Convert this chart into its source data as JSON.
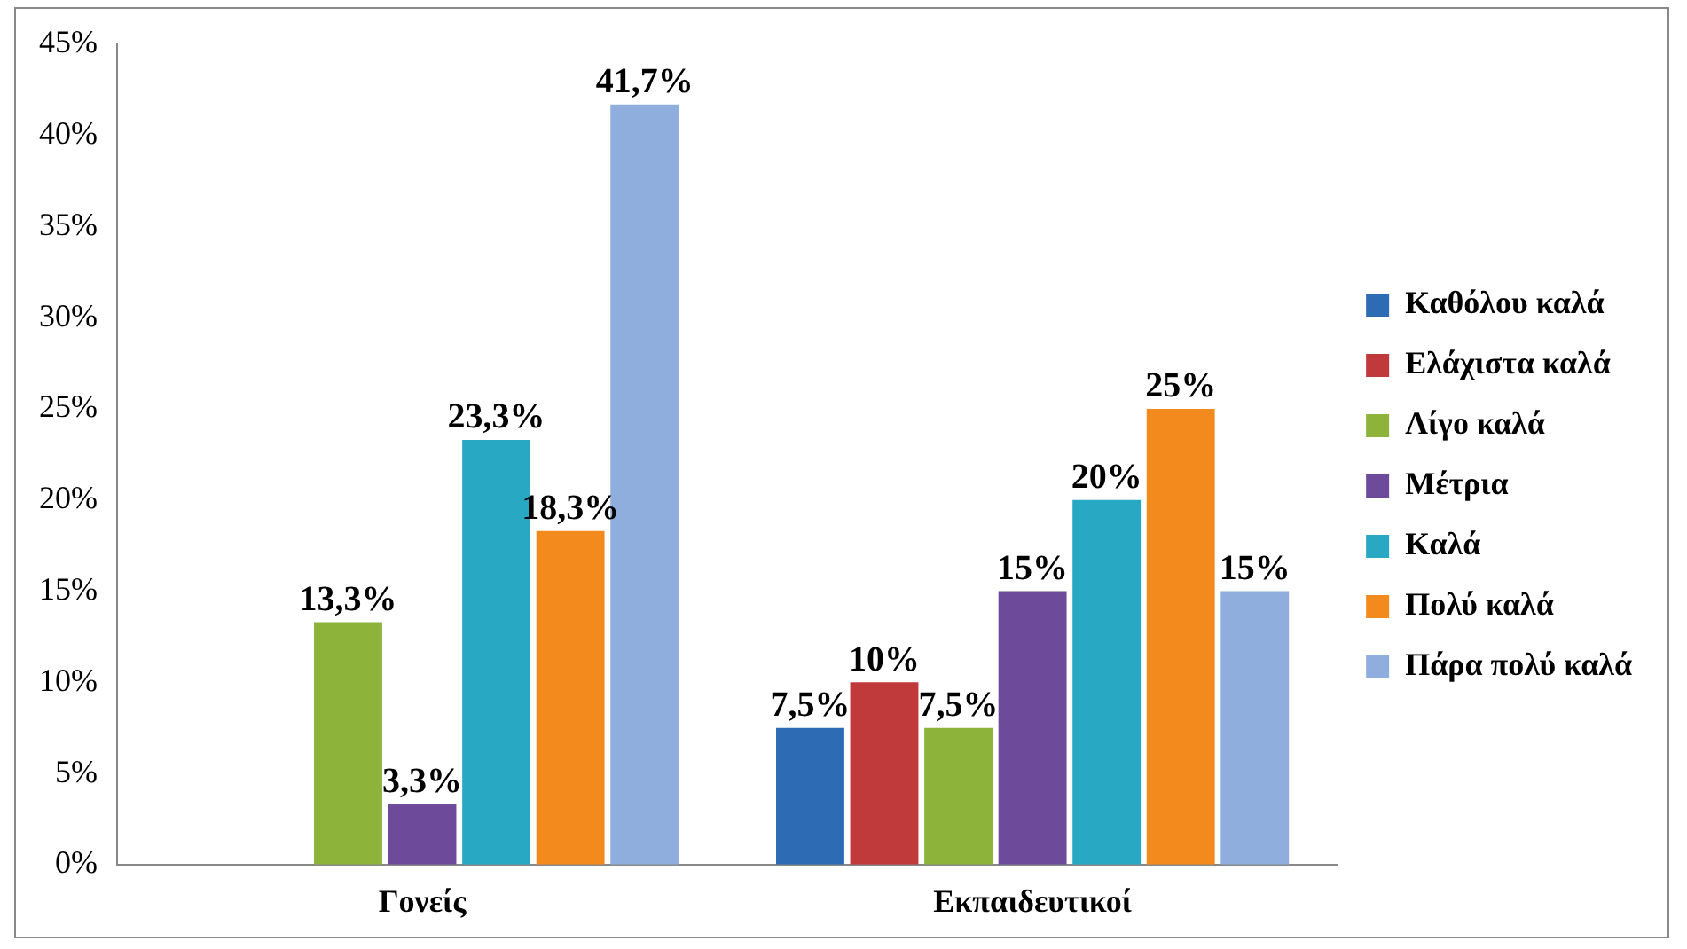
{
  "chart_data": {
    "type": "bar",
    "categories": [
      "Γονείς",
      "Εκπαιδευτικοί"
    ],
    "series": [
      {
        "name": "Καθόλου καλά",
        "color": "#2e6bb5",
        "values": [
          0,
          7.5
        ],
        "value_labels": [
          null,
          "7,5%"
        ]
      },
      {
        "name": "Ελάχιστα καλά",
        "color": "#c0393b",
        "values": [
          0,
          10
        ],
        "value_labels": [
          null,
          "10%"
        ]
      },
      {
        "name": "Λίγο καλά",
        "color": "#8db33a",
        "values": [
          13.3,
          7.5
        ],
        "value_labels": [
          "13,3%",
          "7,5%"
        ]
      },
      {
        "name": "Μέτρια",
        "color": "#6e4a9a",
        "values": [
          3.3,
          15
        ],
        "value_labels": [
          "3,3%",
          "15%"
        ]
      },
      {
        "name": "Καλά",
        "color": "#29a8c4",
        "values": [
          23.3,
          20
        ],
        "value_labels": [
          "23,3%",
          "20%"
        ]
      },
      {
        "name": "Πολύ καλά",
        "color": "#f28a1e",
        "values": [
          18.3,
          25
        ],
        "value_labels": [
          "18,3%",
          "25%"
        ]
      },
      {
        "name": "Πάρα πολύ καλά",
        "color": "#8faedd",
        "values": [
          41.7,
          15
        ],
        "value_labels": [
          "41,7%",
          "15%"
        ]
      }
    ],
    "ylim": [
      0,
      45
    ],
    "yticks": [
      {
        "value": 0,
        "label": "0%"
      },
      {
        "value": 5,
        "label": "5%"
      },
      {
        "value": 10,
        "label": "10%"
      },
      {
        "value": 15,
        "label": "15%"
      },
      {
        "value": 20,
        "label": "20%"
      },
      {
        "value": 25,
        "label": "25%"
      },
      {
        "value": 30,
        "label": "30%"
      },
      {
        "value": 35,
        "label": "35%"
      },
      {
        "value": 40,
        "label": "40%"
      },
      {
        "value": 45,
        "label": "45%"
      }
    ],
    "grid": false,
    "legend": "right"
  }
}
